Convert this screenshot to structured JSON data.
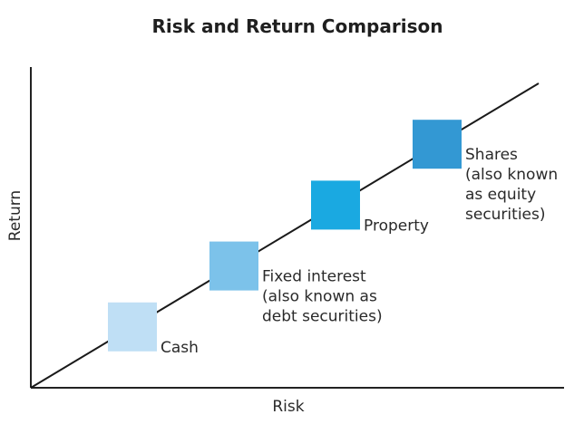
{
  "chart_data": {
    "type": "scatter",
    "title": "Risk and Return Comparison",
    "xlabel": "Risk",
    "ylabel": "Return",
    "grid": false,
    "legend": "none",
    "trend_line": true,
    "points": [
      {
        "label": [
          "Cash"
        ],
        "x": 1,
        "y": 1,
        "color": "#bfdff5"
      },
      {
        "label": [
          "Fixed interest",
          "(also known as",
          "debt securities)"
        ],
        "x": 2,
        "y": 2,
        "color": "#7cc2ea"
      },
      {
        "label": [
          "Property"
        ],
        "x": 3,
        "y": 3,
        "color": "#1aa9e1"
      },
      {
        "label": [
          "Shares",
          "(also known",
          "as equity",
          "securities)"
        ],
        "x": 4,
        "y": 4,
        "color": "#3398d3"
      }
    ],
    "xlim": [
      0,
      5
    ],
    "ylim": [
      0,
      5
    ]
  }
}
